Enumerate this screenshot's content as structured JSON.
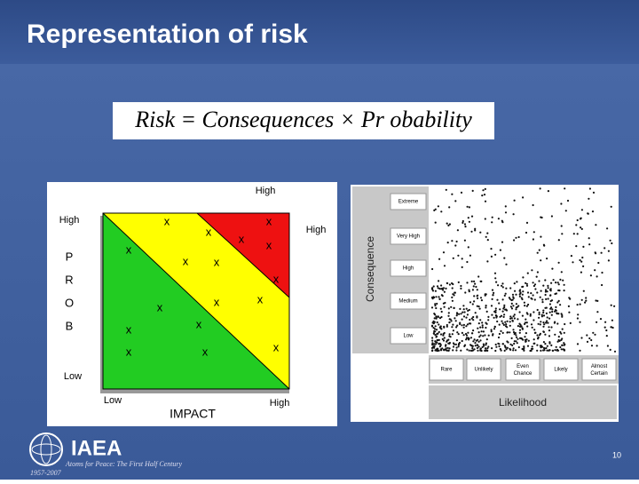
{
  "header": {
    "title": "Representation of risk"
  },
  "formula": "Risk = Consequences × Pr obability",
  "left_diagram": {
    "top_label": "High",
    "y_high": "High",
    "y_letters": [
      "P",
      "R",
      "O",
      "B"
    ],
    "y_low": "Low",
    "right_label": "High",
    "x_low": "Low",
    "x_high": "High",
    "x_title": "IMPACT",
    "marker": "x"
  },
  "right_diagram": {
    "y_title": "Consequence",
    "consequence_levels": [
      "Extreme",
      "Very High",
      "High",
      "Medium",
      "Low"
    ],
    "likelihood_levels": [
      "Rare",
      "Unlikely",
      "Even Chance",
      "Likely",
      "Almost Certain"
    ],
    "x_title": "Likelihood"
  },
  "footer": {
    "logo": "IAEA",
    "tagline": "Atoms for Peace: The First Half Century",
    "years": "1957-2007",
    "page": "10"
  }
}
